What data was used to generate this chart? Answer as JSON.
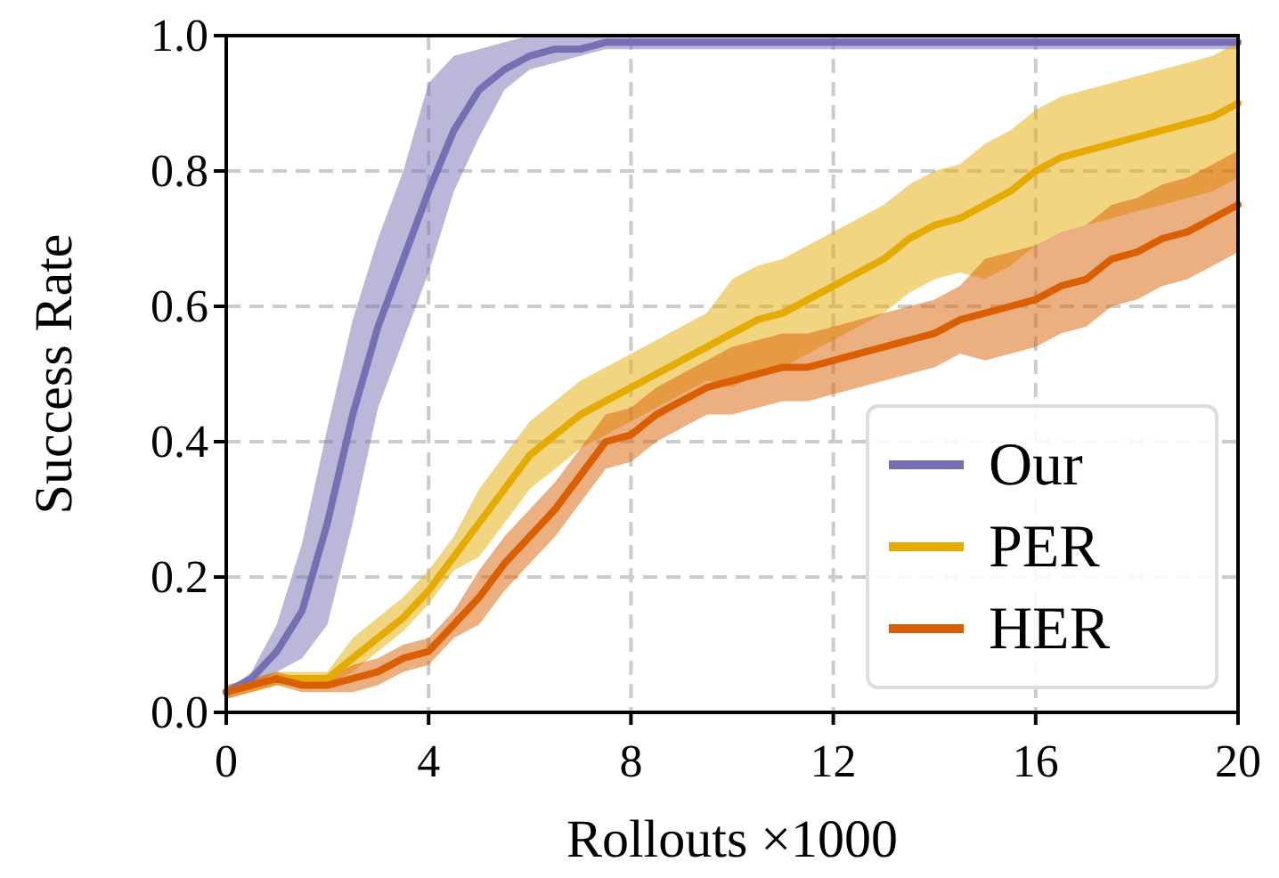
{
  "chart_data": {
    "type": "line",
    "xlabel": "Rollouts ×1000",
    "ylabel": "Success Rate",
    "x": [
      0,
      0.5,
      1,
      1.5,
      2,
      2.5,
      3,
      3.5,
      4,
      4.5,
      5,
      5.5,
      6,
      6.5,
      7,
      7.5,
      8,
      8.5,
      9,
      9.5,
      10,
      10.5,
      11,
      11.5,
      12,
      12.5,
      13,
      13.5,
      14,
      14.5,
      15,
      15.5,
      16,
      16.5,
      17,
      17.5,
      18,
      18.5,
      19,
      19.5,
      20
    ],
    "xlim": [
      0,
      20
    ],
    "xticks": [
      0,
      4,
      8,
      12,
      16,
      20
    ],
    "ylim": [
      0,
      1
    ],
    "yticks": [
      {
        "value": 0,
        "label": "0.0"
      },
      {
        "value": 0.2,
        "label": "0.2"
      },
      {
        "value": 0.4,
        "label": "0.4"
      },
      {
        "value": 0.6,
        "label": "0.6"
      },
      {
        "value": 0.8,
        "label": "0.8"
      },
      {
        "value": 1,
        "label": "1.0"
      }
    ],
    "grid": true,
    "legend": "bottom right",
    "line_style": "solid",
    "marker": "none",
    "series": [
      {
        "name": "Our",
        "color": "#7570b3",
        "values": [
          0.03,
          0.05,
          0.09,
          0.15,
          0.28,
          0.44,
          0.57,
          0.67,
          0.77,
          0.86,
          0.92,
          0.95,
          0.97,
          0.98,
          0.98,
          0.99,
          0.99,
          0.99,
          0.99,
          0.99,
          0.99,
          0.99,
          0.99,
          0.99,
          0.99,
          0.99,
          0.99,
          0.99,
          0.99,
          0.99,
          0.99,
          0.99,
          0.99,
          0.99,
          0.99,
          0.99,
          0.99,
          0.99,
          0.99,
          0.99,
          0.99
        ],
        "lower": [
          0.03,
          0.04,
          0.06,
          0.08,
          0.13,
          0.28,
          0.45,
          0.55,
          0.65,
          0.77,
          0.85,
          0.92,
          0.95,
          0.96,
          0.97,
          0.98,
          0.98,
          0.98,
          0.98,
          0.98,
          0.98,
          0.98,
          0.98,
          0.98,
          0.98,
          0.98,
          0.98,
          0.98,
          0.98,
          0.98,
          0.98,
          0.98,
          0.98,
          0.98,
          0.98,
          0.98,
          0.98,
          0.98,
          0.98,
          0.98,
          0.98
        ],
        "upper": [
          0.03,
          0.06,
          0.13,
          0.25,
          0.42,
          0.58,
          0.7,
          0.8,
          0.93,
          0.97,
          0.98,
          0.99,
          1,
          1,
          1,
          1,
          1,
          1,
          1,
          1,
          1,
          1,
          1,
          1,
          1,
          1,
          1,
          1,
          1,
          1,
          1,
          1,
          1,
          1,
          1,
          1,
          1,
          1,
          1,
          1,
          1
        ]
      },
      {
        "name": "PER",
        "color": "#e6ab02",
        "values": [
          0.03,
          0.04,
          0.05,
          0.05,
          0.05,
          0.08,
          0.11,
          0.14,
          0.18,
          0.23,
          0.28,
          0.33,
          0.38,
          0.41,
          0.44,
          0.46,
          0.48,
          0.5,
          0.52,
          0.54,
          0.56,
          0.58,
          0.59,
          0.61,
          0.63,
          0.65,
          0.67,
          0.7,
          0.72,
          0.73,
          0.75,
          0.77,
          0.8,
          0.82,
          0.83,
          0.84,
          0.85,
          0.86,
          0.87,
          0.88,
          0.9
        ],
        "lower": [
          0.02,
          0.03,
          0.04,
          0.04,
          0.04,
          0.06,
          0.09,
          0.12,
          0.16,
          0.21,
          0.23,
          0.28,
          0.33,
          0.36,
          0.39,
          0.41,
          0.43,
          0.45,
          0.47,
          0.49,
          0.48,
          0.5,
          0.51,
          0.53,
          0.55,
          0.57,
          0.59,
          0.62,
          0.64,
          0.65,
          0.64,
          0.66,
          0.69,
          0.71,
          0.72,
          0.73,
          0.74,
          0.75,
          0.76,
          0.77,
          0.79
        ],
        "upper": [
          0.04,
          0.05,
          0.06,
          0.06,
          0.06,
          0.11,
          0.14,
          0.17,
          0.21,
          0.26,
          0.33,
          0.38,
          0.43,
          0.46,
          0.49,
          0.51,
          0.53,
          0.55,
          0.57,
          0.59,
          0.64,
          0.66,
          0.67,
          0.69,
          0.71,
          0.73,
          0.75,
          0.78,
          0.8,
          0.81,
          0.84,
          0.86,
          0.89,
          0.91,
          0.92,
          0.93,
          0.94,
          0.95,
          0.96,
          0.97,
          0.99
        ]
      },
      {
        "name": "HER",
        "color": "#d95f02",
        "values": [
          0.03,
          0.04,
          0.05,
          0.04,
          0.04,
          0.05,
          0.06,
          0.08,
          0.09,
          0.13,
          0.17,
          0.22,
          0.26,
          0.3,
          0.35,
          0.4,
          0.41,
          0.44,
          0.46,
          0.48,
          0.49,
          0.5,
          0.51,
          0.51,
          0.52,
          0.53,
          0.54,
          0.55,
          0.56,
          0.58,
          0.59,
          0.6,
          0.61,
          0.63,
          0.64,
          0.67,
          0.68,
          0.7,
          0.71,
          0.73,
          0.75
        ],
        "lower": [
          0.02,
          0.03,
          0.04,
          0.03,
          0.03,
          0.03,
          0.04,
          0.06,
          0.07,
          0.11,
          0.13,
          0.18,
          0.22,
          0.26,
          0.31,
          0.36,
          0.37,
          0.4,
          0.42,
          0.44,
          0.44,
          0.45,
          0.46,
          0.46,
          0.47,
          0.48,
          0.49,
          0.5,
          0.51,
          0.53,
          0.52,
          0.53,
          0.54,
          0.56,
          0.57,
          0.6,
          0.61,
          0.63,
          0.64,
          0.66,
          0.68
        ],
        "upper": [
          0.04,
          0.05,
          0.06,
          0.05,
          0.05,
          0.07,
          0.08,
          0.1,
          0.11,
          0.15,
          0.21,
          0.26,
          0.3,
          0.34,
          0.39,
          0.44,
          0.45,
          0.48,
          0.5,
          0.52,
          0.54,
          0.55,
          0.56,
          0.56,
          0.57,
          0.58,
          0.59,
          0.6,
          0.61,
          0.63,
          0.67,
          0.68,
          0.69,
          0.71,
          0.72,
          0.75,
          0.76,
          0.78,
          0.79,
          0.81,
          0.83
        ]
      }
    ]
  }
}
